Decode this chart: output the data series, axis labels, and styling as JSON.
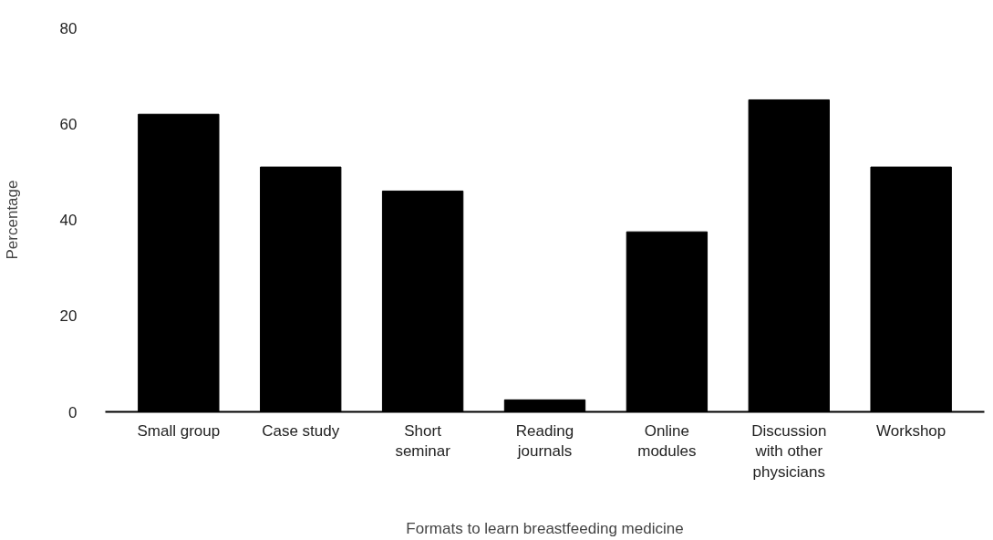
{
  "chart_data": {
    "type": "bar",
    "xlabel": "Formats to learn breastfeeding medicine",
    "ylabel": "Percentage",
    "categories": [
      "Small group",
      "Case study",
      "Short seminar",
      "Reading journals",
      "Online modules",
      "Discussion with other physicians",
      "Workshop"
    ],
    "values": [
      62,
      51,
      46,
      2.5,
      37.5,
      65,
      51
    ],
    "color": "#000000",
    "ylim": [
      0,
      80
    ],
    "yticks": [
      0,
      20,
      40,
      60,
      80
    ],
    "grid": false
  }
}
